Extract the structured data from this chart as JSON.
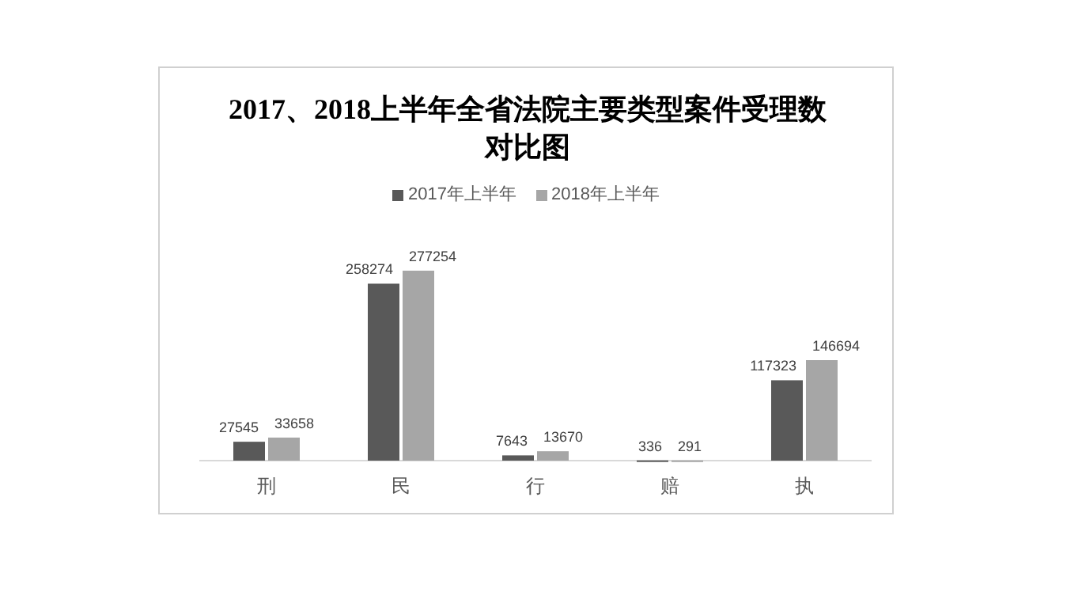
{
  "chart_data": {
    "type": "bar",
    "title": "2017、2018上半年全省法院主要类型案件受理数对比图",
    "categories": [
      "刑",
      "民",
      "行",
      "赔",
      "执"
    ],
    "series": [
      {
        "name": "2017年上半年",
        "color": "#595959",
        "values": [
          27545,
          258274,
          7643,
          336,
          117323
        ]
      },
      {
        "name": "2018年上半年",
        "color": "#a6a6a6",
        "values": [
          33658,
          277254,
          13670,
          291,
          146694
        ]
      }
    ],
    "data_labels": true,
    "legend": "top"
  }
}
